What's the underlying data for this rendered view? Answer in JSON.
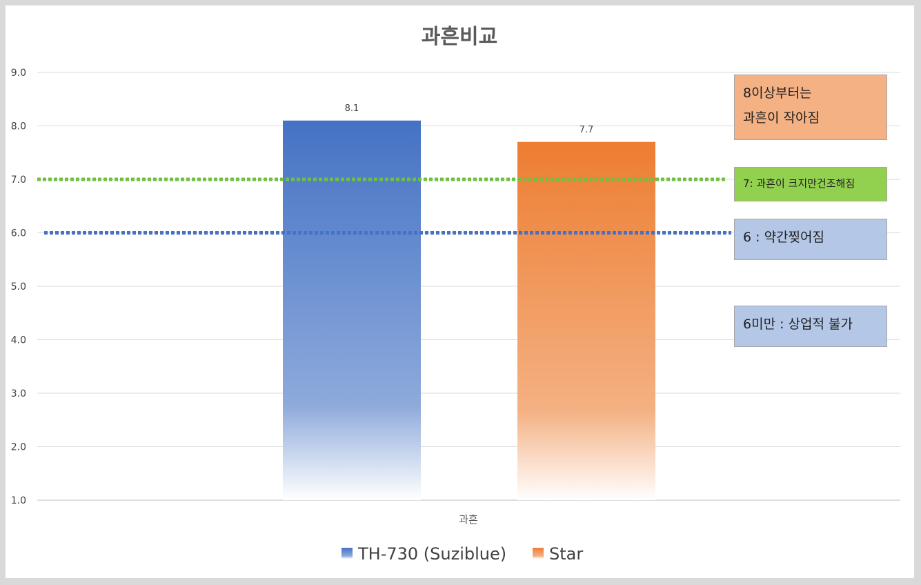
{
  "chart_data": {
    "type": "bar",
    "title": "과흔비교",
    "categories": [
      "과흔"
    ],
    "series": [
      {
        "name": "TH-730 (Suziblue)",
        "values": [
          8.1
        ],
        "color": "#4472c4"
      },
      {
        "name": "Star",
        "values": [
          7.7
        ],
        "color": "#ed7d31"
      }
    ],
    "data_labels": [
      "8.1",
      "7.7"
    ],
    "ylim": [
      1.0,
      9.0
    ],
    "yticks": [
      "1.0",
      "2.0",
      "3.0",
      "4.0",
      "5.0",
      "6.0",
      "7.0",
      "8.0",
      "9.0"
    ],
    "grid": true,
    "legend_position": "bottom",
    "reference_lines": [
      {
        "value": 7.0,
        "color": "#70c040",
        "style": "dotted"
      },
      {
        "value": 6.0,
        "color": "#4472c4",
        "style": "dotted"
      }
    ],
    "annotations": [
      {
        "text": "8이상부터는\n과흔이 작아짐",
        "color": "#f4b183"
      },
      {
        "text": "7: 과흔이 크지만건조해짐",
        "color": "#92d050"
      },
      {
        "text": "6 : 약간찢어짐",
        "color": "#b4c7e7"
      },
      {
        "text": "6미만 : 상업적 불가",
        "color": "#b4c7e7"
      }
    ]
  }
}
